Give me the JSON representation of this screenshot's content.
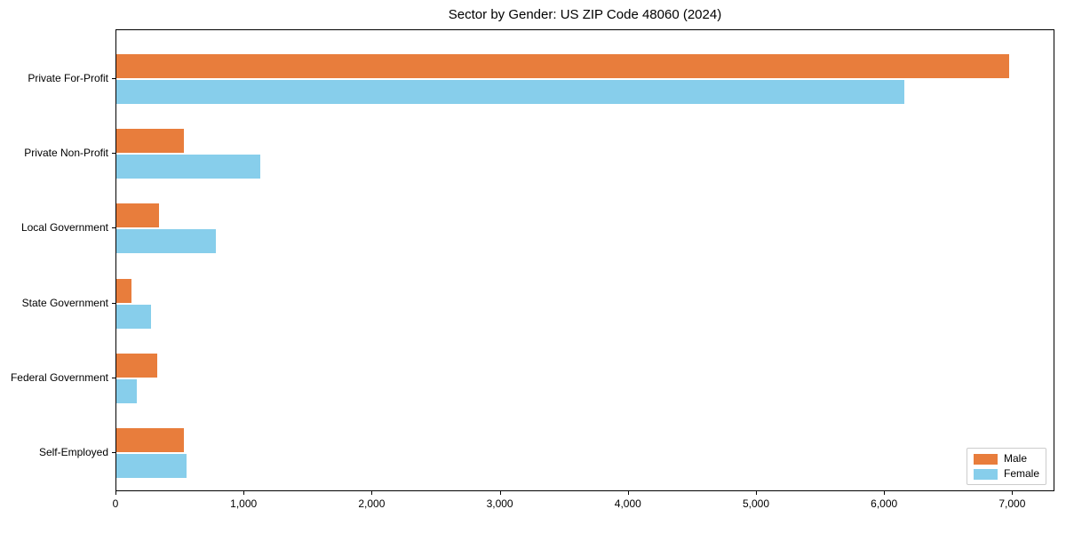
{
  "chart_data": {
    "type": "bar",
    "orientation": "horizontal",
    "title": "Sector by Gender: US ZIP Code 48060 (2024)",
    "categories": [
      "Private For-Profit",
      "Private Non-Profit",
      "Local Government",
      "State Government",
      "Federal Government",
      "Self-Employed"
    ],
    "series": [
      {
        "name": "Male",
        "color": "#e87d3c",
        "values": [
          6970,
          530,
          335,
          120,
          320,
          525
        ]
      },
      {
        "name": "Female",
        "color": "#87ceeb",
        "values": [
          6150,
          1120,
          775,
          270,
          160,
          550
        ]
      }
    ],
    "xlabel": "",
    "ylabel": "",
    "xlim": [
      0,
      7330
    ],
    "xticks": [
      0,
      1000,
      2000,
      3000,
      4000,
      5000,
      6000,
      7000
    ],
    "xtick_labels": [
      "0",
      "1,000",
      "2,000",
      "3,000",
      "4,000",
      "5,000",
      "6,000",
      "7,000"
    ],
    "legend": {
      "position": "lower right",
      "entries": [
        "Male",
        "Female"
      ]
    },
    "grid": false,
    "background": "#ffffff",
    "spine_color": "#000000",
    "legend_border_color": "#cccccc"
  }
}
